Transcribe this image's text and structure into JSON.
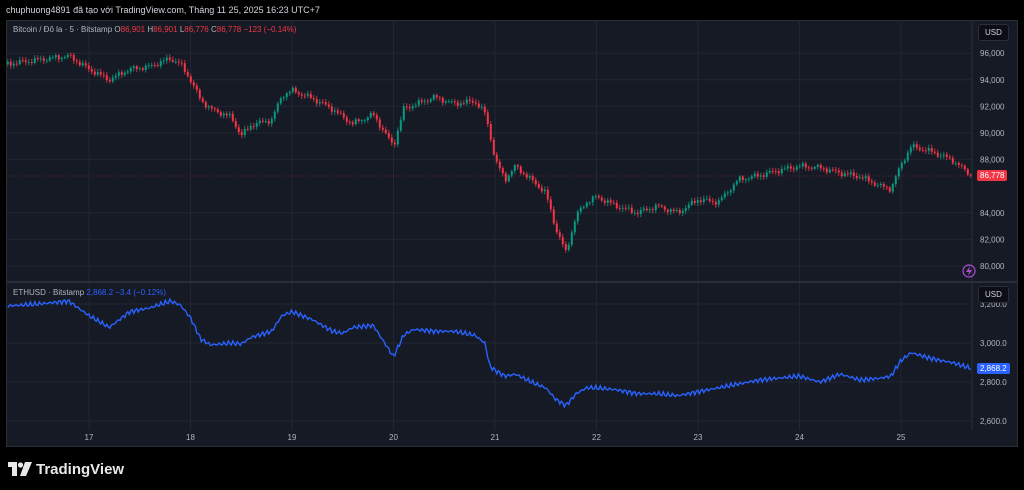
{
  "header": {
    "caption": "chuphuong4891 đã tạo với TradingView.com, Tháng 11 25, 2025 16:23 UTC+7"
  },
  "footer": {
    "brand": "TradingView"
  },
  "top_pane": {
    "symbol": "Bitcoin / Đô la · 5 · Bitstamp",
    "o_label": "O",
    "o_value": "86,901",
    "h_label": "H",
    "h_value": "86,901",
    "l_label": "L",
    "l_value": "86,776",
    "c_label": "C",
    "c_value": "86,778",
    "change": "−123 (−0.14%)",
    "currency": "USD",
    "last_price_label": "86,778",
    "y_ticks": [
      "96,000",
      "94,000",
      "92,000",
      "90,000",
      "88,000",
      "84,000",
      "82,000",
      "80,000"
    ]
  },
  "bottom_pane": {
    "symbol": "ETHUSD · Bitstamp",
    "value": "2,868.2",
    "change": "−3.4 (−0.12%)",
    "currency": "USD",
    "last_price_label": "2,868.2",
    "y_ticks": [
      "3,200.0",
      "3,000.0",
      "2,800.0",
      "2,600.0"
    ]
  },
  "x_ticks": [
    "17",
    "18",
    "19",
    "20",
    "21",
    "22",
    "23",
    "24",
    "25"
  ],
  "colors": {
    "up": "#089981",
    "down": "#f23645",
    "line": "#2962ff",
    "bg": "#161a25",
    "grid": "#232632"
  },
  "chart_data": [
    {
      "type": "candlestick",
      "title": "Bitcoin / Đô la · 5 · Bitstamp",
      "ylim": [
        79500,
        97500
      ],
      "x": [
        16.2,
        16.5,
        16.8,
        17.0,
        17.2,
        17.4,
        17.6,
        17.8,
        17.9,
        18.0,
        18.1,
        18.2,
        18.4,
        18.5,
        18.6,
        18.8,
        18.9,
        19.0,
        19.2,
        19.4,
        19.5,
        19.6,
        19.8,
        20.0,
        20.1,
        20.2,
        20.4,
        20.6,
        20.8,
        20.9,
        20.95,
        21.0,
        21.1,
        21.2,
        21.4,
        21.5,
        21.6,
        21.7,
        21.8,
        21.9,
        22.0,
        22.2,
        22.4,
        22.6,
        22.8,
        23.0,
        23.2,
        23.4,
        23.6,
        23.8,
        24.0,
        24.2,
        24.4,
        24.6,
        24.8,
        24.9,
        25.0,
        25.1,
        25.3,
        25.5,
        25.7
      ],
      "y": [
        95200,
        95500,
        95800,
        94800,
        94000,
        94800,
        95000,
        95600,
        95200,
        94000,
        92500,
        91800,
        91200,
        89800,
        90600,
        91000,
        92800,
        93200,
        92600,
        91800,
        91200,
        90700,
        91400,
        89000,
        91800,
        92100,
        92700,
        92200,
        92400,
        91500,
        90000,
        88000,
        86500,
        87500,
        86200,
        85500,
        82800,
        81000,
        83800,
        84800,
        85200,
        84500,
        84000,
        84500,
        84000,
        85000,
        84800,
        86500,
        86800,
        87200,
        87500,
        87400,
        87000,
        86700,
        86000,
        85800,
        87600,
        89000,
        88600,
        88000,
        86778
      ],
      "last_close": 86778
    },
    {
      "type": "line",
      "title": "ETHUSD · Bitstamp",
      "ylim": [
        2550,
        3280
      ],
      "x": [
        16.2,
        16.5,
        16.8,
        17.0,
        17.2,
        17.4,
        17.6,
        17.8,
        17.9,
        18.0,
        18.1,
        18.2,
        18.4,
        18.5,
        18.6,
        18.8,
        18.9,
        19.0,
        19.2,
        19.4,
        19.5,
        19.6,
        19.8,
        20.0,
        20.1,
        20.2,
        20.4,
        20.6,
        20.8,
        20.9,
        20.95,
        21.0,
        21.1,
        21.2,
        21.4,
        21.5,
        21.6,
        21.7,
        21.8,
        21.9,
        22.0,
        22.2,
        22.4,
        22.6,
        22.8,
        23.0,
        23.2,
        23.4,
        23.6,
        23.8,
        24.0,
        24.2,
        24.4,
        24.6,
        24.8,
        24.9,
        25.0,
        25.1,
        25.3,
        25.5,
        25.7
      ],
      "y": [
        3190,
        3200,
        3215,
        3140,
        3080,
        3160,
        3180,
        3215,
        3195,
        3130,
        3020,
        2990,
        3000,
        2995,
        3030,
        3060,
        3140,
        3160,
        3120,
        3060,
        3050,
        3080,
        3090,
        2930,
        3040,
        3070,
        3060,
        3060,
        3040,
        3000,
        2880,
        2860,
        2830,
        2840,
        2790,
        2770,
        2710,
        2680,
        2740,
        2770,
        2770,
        2760,
        2740,
        2740,
        2730,
        2750,
        2770,
        2790,
        2810,
        2820,
        2830,
        2800,
        2840,
        2810,
        2820,
        2830,
        2910,
        2950,
        2920,
        2900,
        2868.2
      ],
      "last_value": 2868.2
    }
  ]
}
